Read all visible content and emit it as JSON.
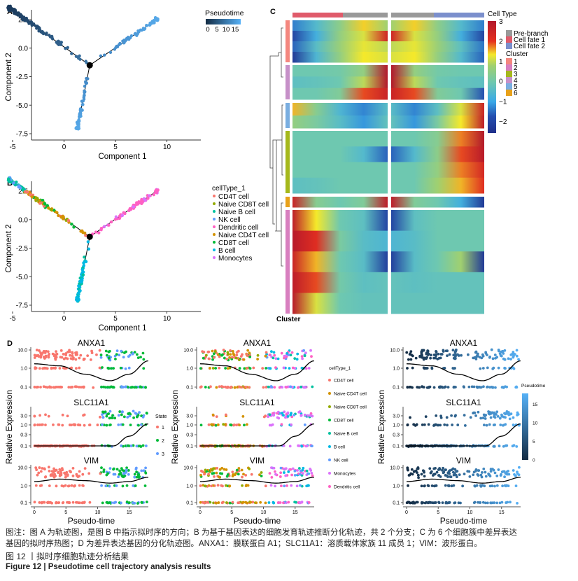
{
  "panel_labels": {
    "a": "A",
    "b": "B",
    "c": "C",
    "d": "D"
  },
  "caption": {
    "note_line1": "图注：图 A 为轨迹图，是图 B 中指示拟时序的方向；B 为基于基因表达的细胞发育轨迹推断分化轨迹，共 2 个分支；C 为 6 个细胞簇中差异表达",
    "note_line2": "基因的拟时序热图；D 为差异表达基因的分化轨迹图。ANXA1：膜联蛋白 A1；SLC11A1：溶质载体家族 11 成员 1；VIM：波形蛋白。",
    "title_cn": "图 12 丨拟时序细胞轨迹分析结果",
    "title_en": "Figure 12  |  Pseudotime cell trajectory analysis results"
  },
  "chart_data": [
    {
      "id": "A",
      "type": "scatter",
      "xlabel": "Component 1",
      "ylabel": "Component 2",
      "xlim": [
        -6,
        10
      ],
      "ylim": [
        -7.5,
        3.8
      ],
      "xticks": [
        "-5",
        "0",
        "5",
        "10"
      ],
      "yticks": [
        "2.5",
        "0.0",
        "-2.5",
        "-5.0",
        "-7.5"
      ],
      "grid": false,
      "color_by": "Pseudotime",
      "legend": {
        "title": "Pseudotime",
        "ticks": [
          "0",
          "5",
          "10",
          "15"
        ],
        "colors": [
          "#132b43",
          "#56b1f7"
        ],
        "placement": "top-right"
      },
      "branch_point": [
        2.5,
        -1.5
      ],
      "branches": [
        {
          "from": [
            2.5,
            -1.5
          ],
          "to": [
            -5.3,
            3.5
          ],
          "pseudotime": [
            7,
            0
          ]
        },
        {
          "from": [
            2.5,
            -1.5
          ],
          "to": [
            9.0,
            2.5
          ],
          "pseudotime": [
            10,
            18
          ]
        },
        {
          "from": [
            2.5,
            -1.5
          ],
          "to": [
            1.3,
            -7.0
          ],
          "pseudotime": [
            10,
            16
          ]
        }
      ]
    },
    {
      "id": "B",
      "type": "scatter",
      "xlabel": "Component 1",
      "ylabel": "Component 2",
      "xlim": [
        -6,
        10
      ],
      "ylim": [
        -7.5,
        3.8
      ],
      "xticks": [
        "-5",
        "0",
        "5",
        "10"
      ],
      "yticks": [
        "2.5",
        "0.0",
        "-2.5",
        "-5.0",
        "-7.5"
      ],
      "grid": false,
      "legend": {
        "title": "cellType_1",
        "placement": "right",
        "items": [
          {
            "label": "CD4T cell",
            "color": "#F8766D"
          },
          {
            "label": "Naive CD8T cell",
            "color": "#93AA00"
          },
          {
            "label": "Naive B cell",
            "color": "#00C19F"
          },
          {
            "label": "NK cell",
            "color": "#619CFF"
          },
          {
            "label": "Dendritic cell",
            "color": "#FF61C3"
          },
          {
            "label": "Naive CD4T cell",
            "color": "#D39200"
          },
          {
            "label": "CD8T cell",
            "color": "#00BA38"
          },
          {
            "label": "B cell",
            "color": "#00B9E3"
          },
          {
            "label": "Monocytes",
            "color": "#DB72FB"
          }
        ]
      },
      "branch_point": [
        2.5,
        -1.5
      ]
    },
    {
      "id": "C",
      "type": "heatmap",
      "row_annotation_label": "Cluster",
      "column_annotation": {
        "title": "Cell Type",
        "items": [
          {
            "label": "Pre-branch",
            "color": "#999999"
          },
          {
            "label": "Cell fate 1",
            "color": "#e05a6a"
          },
          {
            "label": "Cell fate 2",
            "color": "#7b8fcc"
          }
        ]
      },
      "color_scale": {
        "ticks": [
          "3",
          "2",
          "1",
          "0",
          "−1",
          "−2"
        ],
        "range": [
          -2.6,
          3
        ]
      },
      "cluster_legend": {
        "title": "Cluster",
        "items": [
          {
            "label": "1",
            "color": "#f4877f"
          },
          {
            "label": "2",
            "color": "#d87fbf"
          },
          {
            "label": "3",
            "color": "#a5b81c"
          },
          {
            "label": "4",
            "color": "#c690c8"
          },
          {
            "label": "5",
            "color": "#7aaee0"
          },
          {
            "label": "6",
            "color": "#e8a11a"
          }
        ]
      },
      "blocks": [
        {
          "cluster": "1",
          "rows": [
            {
              "left": [
                -1.5,
                -0.5,
                0.5,
                1.5,
                0.8
              ],
              "right": [
                0.8,
                1.5,
                0.5,
                -0.5,
                -1.5
              ]
            },
            {
              "left": [
                -2.2,
                -0.8,
                0.6,
                1.2,
                2.5
              ],
              "right": [
                2.5,
                1.2,
                0.6,
                -0.8,
                -2.2
              ]
            },
            {
              "left": [
                -1.8,
                -0.4,
                0.7,
                1.3,
                1.0
              ],
              "right": [
                1.0,
                1.3,
                0.7,
                -0.3,
                -1.6
              ]
            },
            {
              "left": [
                -2.4,
                -0.6,
                0.6,
                1.4,
                1.2
              ],
              "right": [
                1.2,
                1.4,
                0.6,
                -0.5,
                -1.8
              ]
            }
          ]
        },
        {
          "cluster": "4",
          "rows": [
            {
              "left": [
                0,
                0,
                0.1,
                0.6,
                3
              ],
              "right": [
                3,
                0.6,
                0.1,
                0,
                0
              ]
            },
            {
              "left": [
                -0.3,
                -0.2,
                0,
                1,
                3
              ],
              "right": [
                3,
                1,
                0,
                -0.2,
                -0.3
              ]
            },
            {
              "left": [
                0,
                0,
                0.3,
                2,
                2.6
              ],
              "right": [
                2.6,
                2,
                0.3,
                0,
                -2
              ]
            }
          ]
        },
        {
          "cluster": "5",
          "rows": [
            {
              "left": [
                1.6,
                0.4,
                -0.6,
                -1.4,
                -0.4
              ],
              "right": [
                -0.4,
                -1.4,
                -0.3,
                1.2,
                2.6
              ]
            },
            {
              "left": [
                0.6,
                0.2,
                -0.4,
                -1.2,
                -0.2
              ],
              "right": [
                -0.2,
                -1.2,
                0.2,
                1.4,
                2.8
              ]
            }
          ]
        },
        {
          "cluster": "3",
          "rows": [
            {
              "left": [
                0,
                0,
                0,
                0,
                0
              ],
              "right": [
                0,
                0,
                0.4,
                1.8,
                3
              ]
            },
            {
              "left": [
                0,
                0,
                0,
                -0.5,
                -1.8
              ],
              "right": [
                -1.8,
                -0.5,
                0.5,
                2,
                2.9
              ]
            },
            {
              "left": [
                0,
                0,
                0,
                0,
                0
              ],
              "right": [
                0,
                0,
                0.6,
                1.8,
                2.4
              ]
            },
            {
              "left": [
                -0.3,
                -0.2,
                0,
                0,
                0
              ],
              "right": [
                0,
                0,
                0.8,
                1.6,
                2.2
              ]
            }
          ]
        },
        {
          "cluster": "6",
          "rows": [
            {
              "left": [
                2.6,
                0.4,
                0,
                0.3,
                2.8
              ],
              "right": [
                2.8,
                0.3,
                0,
                -0.8,
                -2.4
              ]
            }
          ]
        },
        {
          "cluster": "2",
          "rows": [
            {
              "left": [
                2.8,
                1.4,
                0,
                -0.3,
                -2.2
              ],
              "right": [
                -2.2,
                -0.3,
                0,
                0,
                0
              ]
            },
            {
              "left": [
                2.9,
                2.2,
                0.2,
                -0.4,
                -0.6
              ],
              "right": [
                -0.6,
                -0.4,
                0,
                0,
                0
              ]
            },
            {
              "left": [
                2.6,
                1.6,
                0,
                -0.4,
                -2.3
              ],
              "right": [
                -2.3,
                -0.4,
                0,
                0.8,
                -2.4
              ]
            },
            {
              "left": [
                2.8,
                2.0,
                0.1,
                -0.3,
                -0.2
              ],
              "right": [
                -0.2,
                -0.3,
                -0.2,
                -0.2,
                -0.2
              ]
            },
            {
              "left": [
                2.9,
                1.2,
                0,
                -0.2,
                -0.2
              ],
              "right": [
                -0.2,
                -0.2,
                -0.2,
                -0.2,
                -0.2
              ]
            }
          ]
        }
      ]
    },
    {
      "id": "D",
      "type": "scatter",
      "xlabel": "Pseudo-time",
      "ylabel": "Relative Expression",
      "xlim": [
        0,
        18
      ],
      "xticks": [
        "0",
        "5",
        "10",
        "15"
      ],
      "genes": [
        {
          "name": "ANXA1",
          "yticks": [
            "10.0",
            "1.0",
            "0.1"
          ],
          "smooth": [
            [
              0,
              1.8
            ],
            [
              4,
              1.4
            ],
            [
              8,
              0.5
            ],
            [
              12,
              0.22
            ],
            [
              15,
              0.5
            ],
            [
              18,
              2.6
            ]
          ]
        },
        {
          "name": "SLC11A1",
          "yticks": [
            "3.0",
            "1.0",
            "0.3",
            "0.1"
          ],
          "smooth": [
            [
              0,
              0.1
            ],
            [
              12.5,
              0.1
            ],
            [
              15,
              0.3
            ],
            [
              18,
              1.2
            ]
          ]
        },
        {
          "name": "VIM",
          "yticks": [
            "10.0",
            "1.0",
            "0.1"
          ],
          "smooth": [
            [
              0,
              1.6
            ],
            [
              4,
              2.2
            ],
            [
              8,
              1.8
            ],
            [
              12,
              1.3
            ],
            [
              15,
              1.6
            ],
            [
              18,
              2.8
            ]
          ]
        }
      ],
      "legends": [
        {
          "title": "State",
          "items": [
            {
              "label": "1",
              "color": "#F8766D"
            },
            {
              "label": "2",
              "color": "#00BA38"
            },
            {
              "label": "3",
              "color": "#619CFF"
            }
          ]
        },
        {
          "title": "cellType_1",
          "items": [
            {
              "label": "CD4T cell",
              "color": "#F8766D"
            },
            {
              "label": "Naive CD4T cell",
              "color": "#D39200"
            },
            {
              "label": "Naive CD8T cell",
              "color": "#93AA00"
            },
            {
              "label": "CD8T cell",
              "color": "#00BA38"
            },
            {
              "label": "Naive B cell",
              "color": "#00C19F"
            },
            {
              "label": "B cell",
              "color": "#00B9E3"
            },
            {
              "label": "NK cell",
              "color": "#619CFF"
            },
            {
              "label": "Monocytes",
              "color": "#DB72FB"
            },
            {
              "label": "Dendritic cell",
              "color": "#FF61C3"
            }
          ]
        },
        {
          "title": "Pseudotime",
          "ticks": [
            "15",
            "10",
            "5",
            "0"
          ],
          "colors": [
            "#132b43",
            "#56b1f7"
          ]
        }
      ]
    }
  ]
}
